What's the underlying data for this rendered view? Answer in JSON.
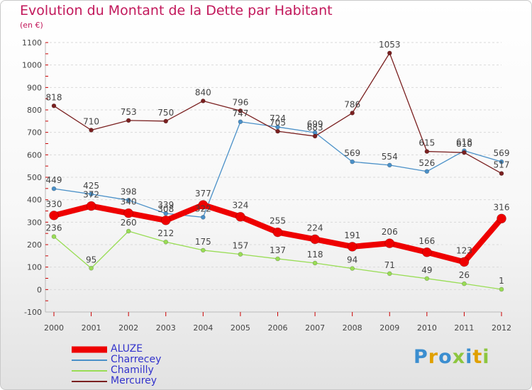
{
  "title": "Evolution du Montant de la Dette par Habitant",
  "unit": "(en €)",
  "brand": {
    "text": "Proxiti",
    "colors": [
      "#3b8ed0",
      "#e0a000",
      "#3b8ed0",
      "#8dc63f",
      "#3b8ed0",
      "#e0a000",
      "#8dc63f"
    ]
  },
  "chart_data": {
    "type": "line",
    "x": [
      "2000",
      "2001",
      "2002",
      "2003",
      "2004",
      "2005",
      "2006",
      "2007",
      "2008",
      "2009",
      "2010",
      "2011",
      "2012"
    ],
    "ylim": [
      -100,
      1100
    ],
    "yticks": [
      -100,
      0,
      100,
      200,
      300,
      400,
      500,
      600,
      700,
      800,
      900,
      1000,
      1100
    ],
    "grid": "horizontal dashed",
    "legend_position": "bottom-left",
    "series": [
      {
        "name": "ALUZE",
        "color": "#ee0000",
        "values": [
          330,
          372,
          340,
          308,
          377,
          324,
          255,
          224,
          191,
          206,
          166,
          123,
          316
        ]
      },
      {
        "name": "Charrecey",
        "color": "#4a90c8",
        "values": [
          449,
          425,
          398,
          339,
          322,
          747,
          724,
          699,
          569,
          554,
          526,
          618,
          569
        ]
      },
      {
        "name": "Chamilly",
        "color": "#99dd55",
        "values": [
          236,
          95,
          260,
          212,
          175,
          157,
          137,
          118,
          94,
          71,
          49,
          26,
          1
        ]
      },
      {
        "name": "Mercurey",
        "color": "#7a2020",
        "values": [
          818,
          710,
          753,
          750,
          840,
          796,
          705,
          683,
          786,
          1053,
          615,
          610,
          517
        ]
      }
    ]
  }
}
